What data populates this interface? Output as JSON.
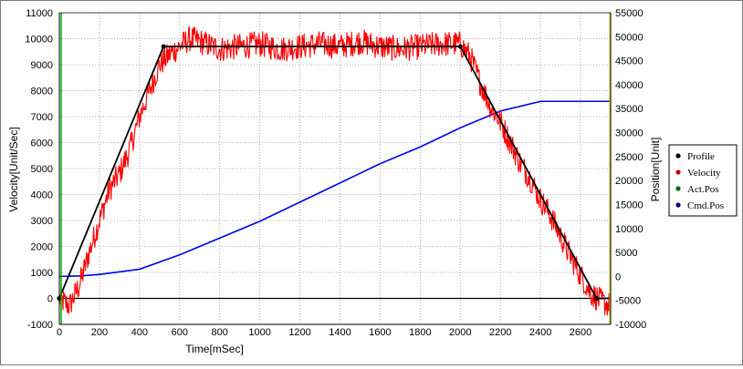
{
  "chart_data": {
    "type": "line",
    "xlabel": "Time[mSec]",
    "ylabel_left": "Velocity[Unit/Sec]",
    "ylabel_right": "Position[Unit]",
    "xlim": [
      0,
      2750
    ],
    "ylim_left": [
      -1000,
      11000
    ],
    "ylim_right": [
      -10000,
      55000
    ],
    "x_ticks": [
      0,
      200,
      400,
      600,
      800,
      1000,
      1200,
      1400,
      1600,
      1800,
      2000,
      2200,
      2400,
      2600
    ],
    "y_ticks_left": [
      -1000,
      0,
      1000,
      2000,
      3000,
      4000,
      5000,
      6000,
      7000,
      8000,
      9000,
      10000,
      11000
    ],
    "y_ticks_right": [
      -10000,
      -5000,
      0,
      5000,
      10000,
      15000,
      20000,
      25000,
      30000,
      35000,
      40000,
      45000,
      50000,
      55000
    ],
    "grid": true,
    "legend_position": "right",
    "series": [
      {
        "name": "Profile",
        "axis": "left",
        "color": "#000000",
        "x": [
          0,
          520,
          2000,
          2680,
          2750
        ],
        "y": [
          0,
          9700,
          9700,
          0,
          0
        ]
      },
      {
        "name": "Velocity",
        "axis": "left",
        "color": "#ff0000",
        "x": [
          0,
          50,
          100,
          150,
          200,
          250,
          300,
          350,
          400,
          450,
          500,
          550,
          600,
          650,
          700,
          800,
          900,
          1000,
          1100,
          1200,
          1300,
          1400,
          1500,
          1600,
          1700,
          1800,
          1900,
          2000,
          2050,
          2100,
          2150,
          2200,
          2250,
          2300,
          2350,
          2400,
          2450,
          2500,
          2550,
          2600,
          2650,
          2700,
          2750
        ],
        "y": [
          0,
          -300,
          500,
          1800,
          3000,
          4200,
          4800,
          5700,
          7000,
          8000,
          9000,
          9400,
          9700,
          10000,
          9900,
          9600,
          9700,
          9800,
          9600,
          9700,
          9800,
          9700,
          9900,
          9700,
          9600,
          9700,
          9800,
          9800,
          9300,
          8300,
          7400,
          6800,
          6000,
          5200,
          4600,
          3800,
          3200,
          2400,
          1600,
          900,
          200,
          -100,
          -300
        ]
      },
      {
        "name": "Act.Pos",
        "axis": "right",
        "color": "#008000",
        "x": [
          0,
          100,
          200,
          400,
          600,
          800,
          1000,
          1200,
          1400,
          1600,
          1800,
          2000,
          2200,
          2400,
          2600,
          2750
        ],
        "y": [
          0,
          100,
          400,
          1500,
          4500,
          8000,
          11500,
          15500,
          19500,
          23500,
          27000,
          31000,
          34500,
          36500,
          36500,
          36500
        ]
      },
      {
        "name": "Cmd.Pos",
        "axis": "right",
        "color": "#0000ff",
        "x": [
          0,
          100,
          200,
          400,
          600,
          800,
          1000,
          1200,
          1400,
          1600,
          1800,
          2000,
          2200,
          2400,
          2600,
          2750
        ],
        "y": [
          0,
          100,
          400,
          1500,
          4500,
          8000,
          11500,
          15500,
          19500,
          23500,
          27000,
          31000,
          34500,
          36500,
          36500,
          36500
        ]
      }
    ],
    "legend": [
      {
        "name": "Profile",
        "color": "#000000"
      },
      {
        "name": "Velocity",
        "color": "#cc0000"
      },
      {
        "name": "Act.Pos",
        "color": "#006400"
      },
      {
        "name": "Cmd.Pos",
        "color": "#000080"
      }
    ]
  }
}
